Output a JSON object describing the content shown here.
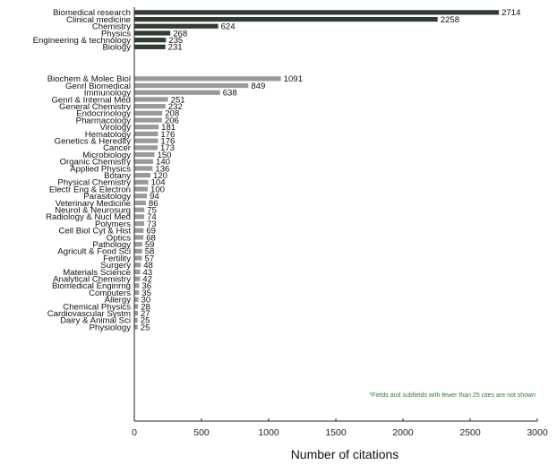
{
  "chart_data": {
    "type": "bar",
    "orientation": "horizontal",
    "xlabel": "Number of citations",
    "xlim": [
      0,
      3000
    ],
    "xticks": [
      0,
      500,
      1000,
      1500,
      2000,
      2500,
      3000
    ],
    "grid": false,
    "note": "*Fields and subfields with fewer than 25 cites are not shown",
    "colors": {
      "fields": "#333c33",
      "subfields": "#9a9a9a"
    },
    "groups": [
      {
        "name": "fields",
        "categories": [
          "Biomedical research",
          "Clinical medicine",
          "Chemistry",
          "Physics",
          "Engineering & technology",
          "Biology"
        ],
        "values": [
          2714,
          2258,
          624,
          268,
          235,
          231
        ]
      },
      {
        "name": "subfields",
        "categories": [
          "Biochem & Molec Biol",
          "Genrl Biomedical",
          "Immunology",
          "Genrl & Internal Med",
          "General Chemistry",
          "Endocrinology",
          "Pharmacology",
          "Virology",
          "Hematology",
          "Genetics & Heredity",
          "Cancer",
          "Microbiology",
          "Organic Chemistry",
          "Applied Physics",
          "Botany",
          "Physical Chemistry",
          "Electr Eng & Electron",
          "Parasitology",
          "Veterinary Medicine",
          "Neurol & Neurosurg",
          "Radiology & Nucl Med",
          "Polymers",
          "Cell Biol Cyt & Hist",
          "Optics",
          "Pathology",
          "Agricult & Food Sci",
          "Fertility",
          "Surgery",
          "Materials Science",
          "Analytical Chemistry",
          "Biomedical Enginrng",
          "Computers",
          "Allergy",
          "Chemical Physics",
          "Cardiovascular Systm",
          "Dairy & Animal Sci",
          "Physiology"
        ],
        "values": [
          1091,
          849,
          638,
          251,
          232,
          208,
          206,
          181,
          176,
          176,
          173,
          150,
          140,
          136,
          120,
          104,
          100,
          94,
          86,
          75,
          74,
          73,
          69,
          68,
          59,
          58,
          57,
          48,
          43,
          42,
          36,
          35,
          30,
          28,
          27,
          25,
          25
        ]
      }
    ]
  }
}
